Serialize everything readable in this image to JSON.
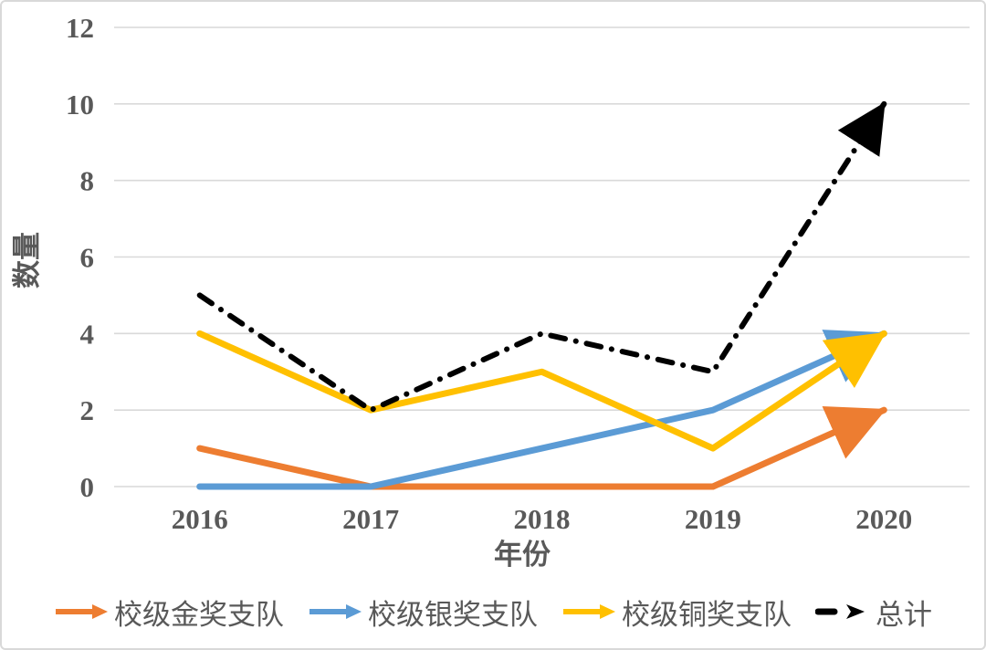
{
  "card": {
    "background": "#ffffff",
    "border_color": "#d9d9d9"
  },
  "chart_data": {
    "type": "line",
    "categories": [
      "2016",
      "2017",
      "2018",
      "2019",
      "2020"
    ],
    "series": [
      {
        "key": "gold",
        "name": "校级金奖支队",
        "values": [
          1,
          0,
          0,
          0,
          2
        ],
        "color": "#ED7D31",
        "style": "solid"
      },
      {
        "key": "silver",
        "name": "校级银奖支队",
        "values": [
          0,
          0,
          1,
          2,
          4
        ],
        "color": "#5B9BD5",
        "style": "solid"
      },
      {
        "key": "bronze",
        "name": "校级铜奖支队",
        "values": [
          4,
          2,
          3,
          1,
          4
        ],
        "color": "#FFC000",
        "style": "solid"
      },
      {
        "key": "total",
        "name": "总计",
        "values": [
          5,
          2,
          4,
          3,
          10
        ],
        "color": "#000000",
        "style": "dashdot"
      }
    ],
    "xlabel": "年份",
    "ylabel": "数量",
    "ylim": [
      0,
      12
    ],
    "yticks": [
      0,
      2,
      4,
      6,
      8,
      10,
      12
    ],
    "grid": true,
    "grid_color": "#D9D9D9",
    "text_color": "#595959",
    "legend_position": "bottom",
    "line_end": "arrow"
  }
}
